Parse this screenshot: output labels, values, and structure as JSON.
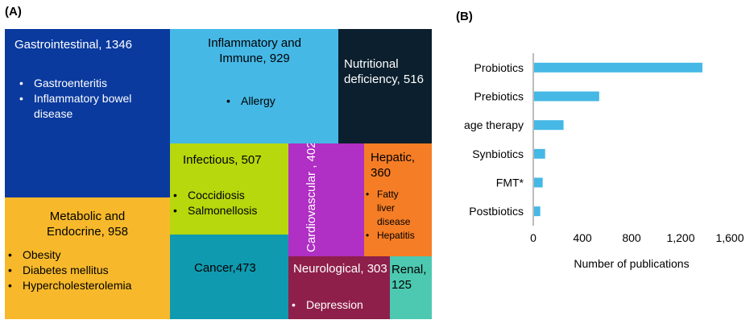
{
  "panels": {
    "a": "(A)",
    "b": "(B)"
  },
  "chart_data": [
    {
      "type": "treemap",
      "tiles": [
        {
          "id": "gastro",
          "title": "Gastrointestinal, 1346",
          "value": 1346,
          "items": [
            "Gastroenteritis",
            "Inflammatory bowel disease"
          ],
          "color": "#0a3a9e",
          "text_color": "#ffffff"
        },
        {
          "id": "inflam",
          "title": "Inflammatory and Immune, 929",
          "value": 929,
          "items": [
            "Allergy"
          ],
          "color": "#45b8e6",
          "text_color": "#000000"
        },
        {
          "id": "nutri",
          "title": "Nutritional deficiency, 516",
          "value": 516,
          "items": [],
          "color": "#0b1f2e",
          "text_color": "#ffffff"
        },
        {
          "id": "metab",
          "title": "Metabolic and Endocrine, 958",
          "value": 958,
          "items": [
            "Obesity",
            "Diabetes mellitus",
            "Hypercholesterolemia"
          ],
          "color": "#f7b92b",
          "text_color": "#000000"
        },
        {
          "id": "infect",
          "title": "Infectious, 507",
          "value": 507,
          "items": [
            "Coccidiosis",
            "Salmonellosis"
          ],
          "color": "#b7d80d",
          "text_color": "#000000"
        },
        {
          "id": "cardio",
          "title": "Cardiovascular , 402",
          "value": 402,
          "items": [],
          "color": "#b02fc4",
          "text_color": "#ffffff"
        },
        {
          "id": "hepatic",
          "title": "Hepatic, 360",
          "value": 360,
          "items": [
            "Fatty liver disease",
            "Hepatitis"
          ],
          "color": "#f57d25",
          "text_color": "#000000"
        },
        {
          "id": "cancer",
          "title": "Cancer,473",
          "value": 473,
          "items": [],
          "color": "#0f9ab0",
          "text_color": "#000000"
        },
        {
          "id": "neuro",
          "title": "Neurological, 303",
          "value": 303,
          "items": [
            "Depression"
          ],
          "color": "#8e1f4a",
          "text_color": "#ffffff"
        },
        {
          "id": "renal",
          "title": "Renal, 125",
          "value": 125,
          "items": [],
          "color": "#4cc9b0",
          "text_color": "#000000"
        }
      ]
    },
    {
      "type": "bar",
      "orientation": "horizontal",
      "categories": [
        "Probiotics",
        "Prebiotics",
        "Phage therapy",
        "Synbiotics",
        "FMT*",
        "Postbiotics"
      ],
      "values": [
        1370,
        530,
        240,
        90,
        70,
        50
      ],
      "xlabel": "Number of publications",
      "xlim": [
        0,
        1600
      ],
      "xticks": [
        0,
        400,
        800,
        1200,
        1600
      ],
      "xtick_labels": [
        "0",
        "400",
        "800",
        "1,200",
        "1,600"
      ],
      "bar_color": "#45b8e6",
      "grid": false
    }
  ]
}
